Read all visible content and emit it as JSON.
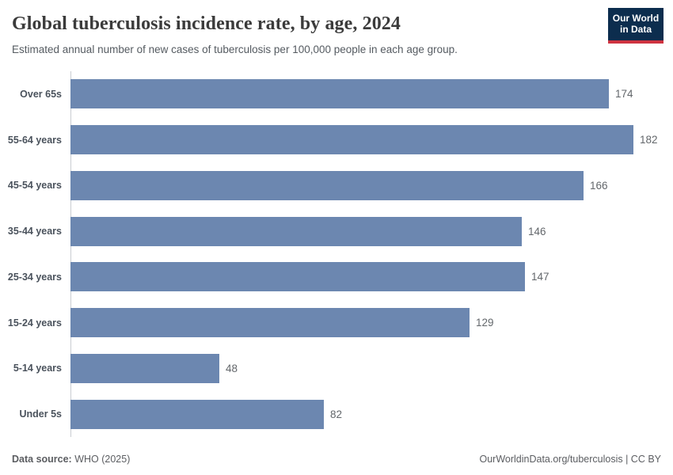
{
  "header": {
    "title": "Global tuberculosis incidence rate, by age, 2024",
    "subtitle": "Estimated annual number of new cases of tuberculosis per 100,000 people in each age group."
  },
  "logo": {
    "line1": "Our World",
    "line2": "in Data",
    "bg_color": "#0c2d4e",
    "accent_color": "#cf3340"
  },
  "chart_data": {
    "type": "bar",
    "orientation": "horizontal",
    "title": "Global tuberculosis incidence rate, by age, 2024",
    "subtitle": "Estimated annual number of new cases of tuberculosis per 100,000 people in each age group.",
    "categories": [
      "Over 65s",
      "55-64 years",
      "45-54 years",
      "35-44 years",
      "25-34 years",
      "15-24 years",
      "5-14 years",
      "Under 5s"
    ],
    "values": [
      174,
      182,
      166,
      146,
      147,
      129,
      48,
      82
    ],
    "xlabel": "",
    "ylabel": "",
    "xlim": [
      0,
      182
    ],
    "grid": false,
    "legend": false,
    "bar_color": "#6c87b0",
    "value_label_color": "#63676b"
  },
  "footer": {
    "source_label": "Data source:",
    "source_value": " WHO (2025)",
    "link": "OurWorldinData.org/tuberculosis | CC BY"
  }
}
